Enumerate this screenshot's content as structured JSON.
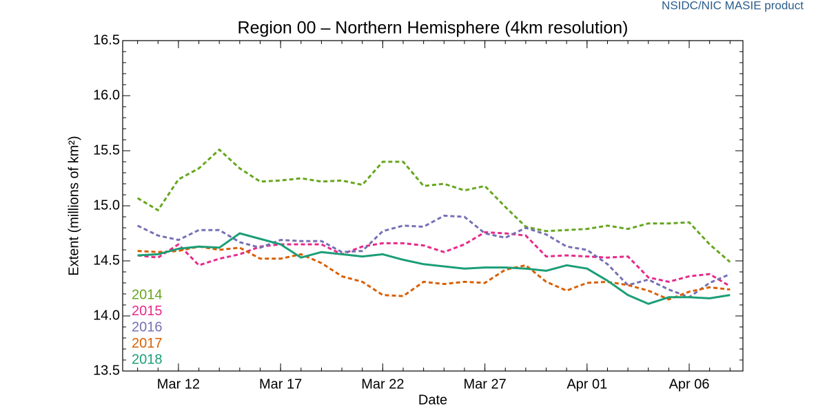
{
  "chart_data": {
    "type": "line",
    "title": "Region 00 – Northern Hemisphere (4km resolution)",
    "source": "NSIDC/NIC MASIE product",
    "xlabel": "Date",
    "ylabel": "Extent (millions of km²)",
    "x": [
      10,
      11,
      12,
      13,
      14,
      15,
      16,
      17,
      18,
      19,
      20,
      21,
      22,
      23,
      24,
      25,
      26,
      27,
      28,
      29,
      30,
      31,
      32,
      33,
      34,
      35,
      36,
      37,
      38,
      39
    ],
    "xlim": [
      9.27,
      39.63
    ],
    "xticks": [
      {
        "value": 12,
        "label": "Mar 12"
      },
      {
        "value": 17,
        "label": "Mar 17"
      },
      {
        "value": 22,
        "label": "Mar 22"
      },
      {
        "value": 27,
        "label": "Mar 27"
      },
      {
        "value": 32,
        "label": "Apr 01"
      },
      {
        "value": 37,
        "label": "Apr 06"
      }
    ],
    "ylim": [
      13.5,
      16.5
    ],
    "yticks": [
      13.5,
      {
        "value": 14,
        "label": "14.0"
      },
      14.5,
      {
        "value": 15,
        "label": "15.0"
      },
      15.5,
      {
        "value": 16,
        "label": "16.0"
      },
      16.5
    ],
    "legend": "lower left",
    "series": [
      {
        "name": "2014",
        "color": "#66a61e",
        "dashed": true,
        "values": [
          15.07,
          14.96,
          15.24,
          15.34,
          15.51,
          15.34,
          15.22,
          15.23,
          15.25,
          15.22,
          15.23,
          15.19,
          15.4,
          15.4,
          15.18,
          15.2,
          15.14,
          15.18,
          14.99,
          14.81,
          14.77,
          14.78,
          14.79,
          14.82,
          14.79,
          14.84,
          14.84,
          14.85,
          14.65,
          14.49
        ]
      },
      {
        "name": "2015",
        "color": "#e7298a",
        "dashed": true,
        "values": [
          14.55,
          14.53,
          14.65,
          14.46,
          14.52,
          14.56,
          14.63,
          14.65,
          14.65,
          14.65,
          14.56,
          14.63,
          14.66,
          14.66,
          14.64,
          14.58,
          14.65,
          14.76,
          14.75,
          14.73,
          14.54,
          14.55,
          14.54,
          14.53,
          14.54,
          14.35,
          14.31,
          14.36,
          14.38,
          14.27
        ]
      },
      {
        "name": "2016",
        "color": "#7570b3",
        "dashed": true,
        "values": [
          14.82,
          14.73,
          14.69,
          14.78,
          14.78,
          14.67,
          14.62,
          14.69,
          14.68,
          14.68,
          14.58,
          14.59,
          14.77,
          14.82,
          14.81,
          14.91,
          14.9,
          14.75,
          14.71,
          14.8,
          14.74,
          14.63,
          14.6,
          14.47,
          14.28,
          14.33,
          14.24,
          14.17,
          14.3,
          14.38
        ]
      },
      {
        "name": "2017",
        "color": "#d95f02",
        "dashed": true,
        "values": [
          14.59,
          14.58,
          14.59,
          14.63,
          14.6,
          14.62,
          14.52,
          14.52,
          14.56,
          14.48,
          14.36,
          14.31,
          14.19,
          14.18,
          14.31,
          14.29,
          14.31,
          14.3,
          14.42,
          14.46,
          14.31,
          14.23,
          14.3,
          14.31,
          14.28,
          14.23,
          14.15,
          14.22,
          14.26,
          14.24
        ]
      },
      {
        "name": "2018",
        "color": "#1b9e77",
        "dashed": false,
        "values": [
          14.55,
          14.56,
          14.61,
          14.63,
          14.62,
          14.75,
          14.7,
          14.65,
          14.53,
          14.58,
          14.56,
          14.54,
          14.56,
          14.51,
          14.47,
          14.45,
          14.43,
          14.44,
          14.44,
          14.43,
          14.41,
          14.46,
          14.43,
          14.32,
          14.19,
          14.11,
          14.17,
          14.17,
          14.16,
          14.19
        ]
      }
    ]
  }
}
